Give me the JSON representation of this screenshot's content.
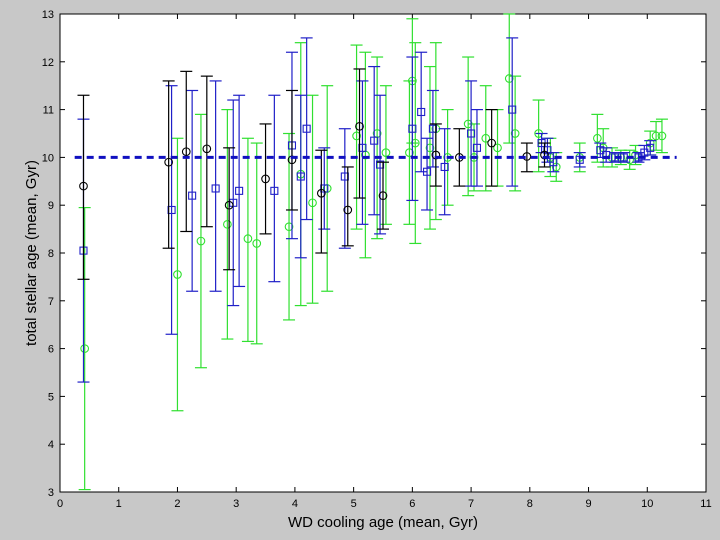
{
  "chart_data": {
    "type": "scatter",
    "xlabel": "WD cooling age (mean, Gyr)",
    "ylabel": "total stellar age (mean, Gyr)",
    "xlim": [
      0,
      11
    ],
    "ylim": [
      3,
      13
    ],
    "xticks": [
      0,
      1,
      2,
      3,
      4,
      5,
      6,
      7,
      8,
      9,
      10,
      11
    ],
    "yticks": [
      3,
      4,
      5,
      6,
      7,
      8,
      9,
      10,
      11,
      12,
      13
    ],
    "grid": false,
    "reference_line": {
      "y": 10,
      "style": "dashed",
      "color": "#1010c0"
    },
    "colors": {
      "black": "#000000",
      "blue": "#2020c8",
      "green": "#30e030"
    },
    "series": [
      {
        "color_key": "black",
        "marker": "circle",
        "points": [
          {
            "x": 0.4,
            "y": 9.4,
            "lo": 7.45,
            "hi": 11.3
          },
          {
            "x": 1.85,
            "y": 9.9,
            "lo": 8.1,
            "hi": 11.6
          },
          {
            "x": 2.15,
            "y": 10.12,
            "lo": 8.45,
            "hi": 11.8
          },
          {
            "x": 2.5,
            "y": 10.18,
            "lo": 8.55,
            "hi": 11.7
          },
          {
            "x": 2.88,
            "y": 9.0,
            "lo": 7.65,
            "hi": 10.2
          },
          {
            "x": 3.5,
            "y": 9.55,
            "lo": 8.4,
            "hi": 10.7
          },
          {
            "x": 3.95,
            "y": 9.95,
            "lo": 8.9,
            "hi": 11.4
          },
          {
            "x": 4.45,
            "y": 9.25,
            "lo": 8.0,
            "hi": 10.15
          },
          {
            "x": 4.9,
            "y": 8.9,
            "lo": 8.15,
            "hi": 9.8
          },
          {
            "x": 5.1,
            "y": 10.65,
            "lo": 9.15,
            "hi": 11.85
          },
          {
            "x": 5.5,
            "y": 9.2,
            "lo": 8.5,
            "hi": 9.9
          },
          {
            "x": 6.4,
            "y": 10.05,
            "lo": 9.4,
            "hi": 10.7
          },
          {
            "x": 6.8,
            "y": 10.0,
            "lo": 9.4,
            "hi": 10.6
          },
          {
            "x": 7.35,
            "y": 10.3,
            "lo": 9.4,
            "hi": 11.0
          },
          {
            "x": 7.95,
            "y": 10.02,
            "lo": 9.7,
            "hi": 10.3
          },
          {
            "x": 8.25,
            "y": 10.05,
            "lo": 9.8,
            "hi": 10.3
          }
        ]
      },
      {
        "color_key": "blue",
        "marker": "square",
        "points": [
          {
            "x": 0.4,
            "y": 8.05,
            "lo": 5.3,
            "hi": 10.8
          },
          {
            "x": 1.9,
            "y": 8.9,
            "lo": 6.3,
            "hi": 11.5
          },
          {
            "x": 2.25,
            "y": 9.2,
            "lo": 7.2,
            "hi": 11.4
          },
          {
            "x": 2.65,
            "y": 9.35,
            "lo": 7.2,
            "hi": 11.6
          },
          {
            "x": 2.95,
            "y": 9.05,
            "lo": 6.9,
            "hi": 11.2
          },
          {
            "x": 3.05,
            "y": 9.3,
            "lo": 7.3,
            "hi": 11.3
          },
          {
            "x": 3.65,
            "y": 9.3,
            "lo": 7.4,
            "hi": 11.3
          },
          {
            "x": 3.95,
            "y": 10.25,
            "lo": 8.3,
            "hi": 12.2
          },
          {
            "x": 4.1,
            "y": 9.6,
            "lo": 7.9,
            "hi": 11.3
          },
          {
            "x": 4.2,
            "y": 10.6,
            "lo": 8.7,
            "hi": 12.5
          },
          {
            "x": 4.5,
            "y": 9.35,
            "lo": 8.5,
            "hi": 10.2
          },
          {
            "x": 4.85,
            "y": 9.6,
            "lo": 8.1,
            "hi": 10.6
          },
          {
            "x": 5.15,
            "y": 10.2,
            "lo": 8.6,
            "hi": 11.6
          },
          {
            "x": 5.35,
            "y": 10.35,
            "lo": 8.8,
            "hi": 11.9
          },
          {
            "x": 5.45,
            "y": 9.85,
            "lo": 8.4,
            "hi": 11.3
          },
          {
            "x": 6.0,
            "y": 10.6,
            "lo": 9.1,
            "hi": 12.1
          },
          {
            "x": 6.15,
            "y": 10.95,
            "lo": 9.7,
            "hi": 12.2
          },
          {
            "x": 6.25,
            "y": 9.7,
            "lo": 8.9,
            "hi": 10.4
          },
          {
            "x": 6.35,
            "y": 10.6,
            "lo": 9.8,
            "hi": 11.4
          },
          {
            "x": 6.55,
            "y": 9.8,
            "lo": 8.8,
            "hi": 10.6
          },
          {
            "x": 7.0,
            "y": 10.5,
            "lo": 9.4,
            "hi": 11.6
          },
          {
            "x": 7.1,
            "y": 10.2,
            "lo": 9.4,
            "hi": 11.0
          },
          {
            "x": 7.7,
            "y": 11.0,
            "lo": 9.4,
            "hi": 12.5
          },
          {
            "x": 8.2,
            "y": 10.3,
            "lo": 10.1,
            "hi": 10.5
          },
          {
            "x": 8.3,
            "y": 10.15,
            "lo": 9.9,
            "hi": 10.4
          },
          {
            "x": 8.4,
            "y": 9.9,
            "lo": 9.7,
            "hi": 10.1
          },
          {
            "x": 8.85,
            "y": 9.95,
            "lo": 9.8,
            "hi": 10.1
          },
          {
            "x": 9.2,
            "y": 10.15,
            "lo": 10.0,
            "hi": 10.3
          },
          {
            "x": 9.3,
            "y": 10.05,
            "lo": 9.9,
            "hi": 10.2
          },
          {
            "x": 9.45,
            "y": 10.0,
            "lo": 9.9,
            "hi": 10.1
          },
          {
            "x": 9.6,
            "y": 10.0,
            "lo": 9.9,
            "hi": 10.1
          },
          {
            "x": 9.85,
            "y": 10.0,
            "lo": 9.9,
            "hi": 10.1
          },
          {
            "x": 9.95,
            "y": 10.1,
            "lo": 9.95,
            "hi": 10.25
          },
          {
            "x": 10.05,
            "y": 10.2,
            "lo": 10.05,
            "hi": 10.35
          }
        ]
      },
      {
        "color_key": "green",
        "marker": "circle",
        "points": [
          {
            "x": 0.42,
            "y": 6.0,
            "lo": 3.05,
            "hi": 8.95
          },
          {
            "x": 2.0,
            "y": 7.55,
            "lo": 4.7,
            "hi": 10.4
          },
          {
            "x": 2.4,
            "y": 8.25,
            "lo": 5.6,
            "hi": 10.9
          },
          {
            "x": 2.85,
            "y": 8.6,
            "lo": 6.2,
            "hi": 11.0
          },
          {
            "x": 3.2,
            "y": 8.3,
            "lo": 6.15,
            "hi": 10.4
          },
          {
            "x": 3.35,
            "y": 8.2,
            "lo": 6.1,
            "hi": 10.3
          },
          {
            "x": 3.9,
            "y": 8.55,
            "lo": 6.6,
            "hi": 10.5
          },
          {
            "x": 4.1,
            "y": 9.65,
            "lo": 6.9,
            "hi": 12.4
          },
          {
            "x": 4.3,
            "y": 9.05,
            "lo": 6.95,
            "hi": 11.3
          },
          {
            "x": 4.55,
            "y": 9.35,
            "lo": 7.2,
            "hi": 11.5
          },
          {
            "x": 5.05,
            "y": 10.45,
            "lo": 8.5,
            "hi": 12.35
          },
          {
            "x": 5.2,
            "y": 10.05,
            "lo": 7.9,
            "hi": 12.2
          },
          {
            "x": 5.4,
            "y": 10.5,
            "lo": 8.3,
            "hi": 12.1
          },
          {
            "x": 5.55,
            "y": 10.1,
            "lo": 8.6,
            "hi": 11.5
          },
          {
            "x": 5.95,
            "y": 10.1,
            "lo": 8.6,
            "hi": 11.6
          },
          {
            "x": 6.0,
            "y": 11.6,
            "lo": 10.3,
            "hi": 12.9
          },
          {
            "x": 6.05,
            "y": 10.3,
            "lo": 8.2,
            "hi": 12.4
          },
          {
            "x": 6.3,
            "y": 10.2,
            "lo": 8.5,
            "hi": 11.9
          },
          {
            "x": 6.4,
            "y": 10.6,
            "lo": 8.7,
            "hi": 12.4
          },
          {
            "x": 6.6,
            "y": 10.0,
            "lo": 9.0,
            "hi": 11.0
          },
          {
            "x": 6.95,
            "y": 10.7,
            "lo": 9.2,
            "hi": 12.1
          },
          {
            "x": 7.05,
            "y": 10.0,
            "lo": 9.3,
            "hi": 10.7
          },
          {
            "x": 7.25,
            "y": 10.4,
            "lo": 9.3,
            "hi": 11.5
          },
          {
            "x": 7.45,
            "y": 10.2,
            "lo": 9.4,
            "hi": 11.0
          },
          {
            "x": 7.65,
            "y": 11.65,
            "lo": 10.3,
            "hi": 13.0
          },
          {
            "x": 7.75,
            "y": 10.5,
            "lo": 9.3,
            "hi": 11.7
          },
          {
            "x": 8.15,
            "y": 10.5,
            "lo": 9.7,
            "hi": 11.2
          },
          {
            "x": 8.35,
            "y": 10.0,
            "lo": 9.6,
            "hi": 10.4
          },
          {
            "x": 8.45,
            "y": 9.8,
            "lo": 9.5,
            "hi": 10.1
          },
          {
            "x": 8.85,
            "y": 10.0,
            "lo": 9.7,
            "hi": 10.3
          },
          {
            "x": 9.15,
            "y": 10.4,
            "lo": 9.9,
            "hi": 10.9
          },
          {
            "x": 9.25,
            "y": 10.2,
            "lo": 9.8,
            "hi": 10.6
          },
          {
            "x": 9.4,
            "y": 10.0,
            "lo": 9.8,
            "hi": 10.2
          },
          {
            "x": 9.55,
            "y": 10.0,
            "lo": 9.85,
            "hi": 10.15
          },
          {
            "x": 9.7,
            "y": 9.95,
            "lo": 9.75,
            "hi": 10.15
          },
          {
            "x": 9.8,
            "y": 10.05,
            "lo": 9.85,
            "hi": 10.25
          },
          {
            "x": 10.05,
            "y": 10.3,
            "lo": 10.05,
            "hi": 10.55
          },
          {
            "x": 10.15,
            "y": 10.45,
            "lo": 10.15,
            "hi": 10.75
          },
          {
            "x": 10.25,
            "y": 10.45,
            "lo": 10.1,
            "hi": 10.8
          }
        ]
      }
    ]
  }
}
